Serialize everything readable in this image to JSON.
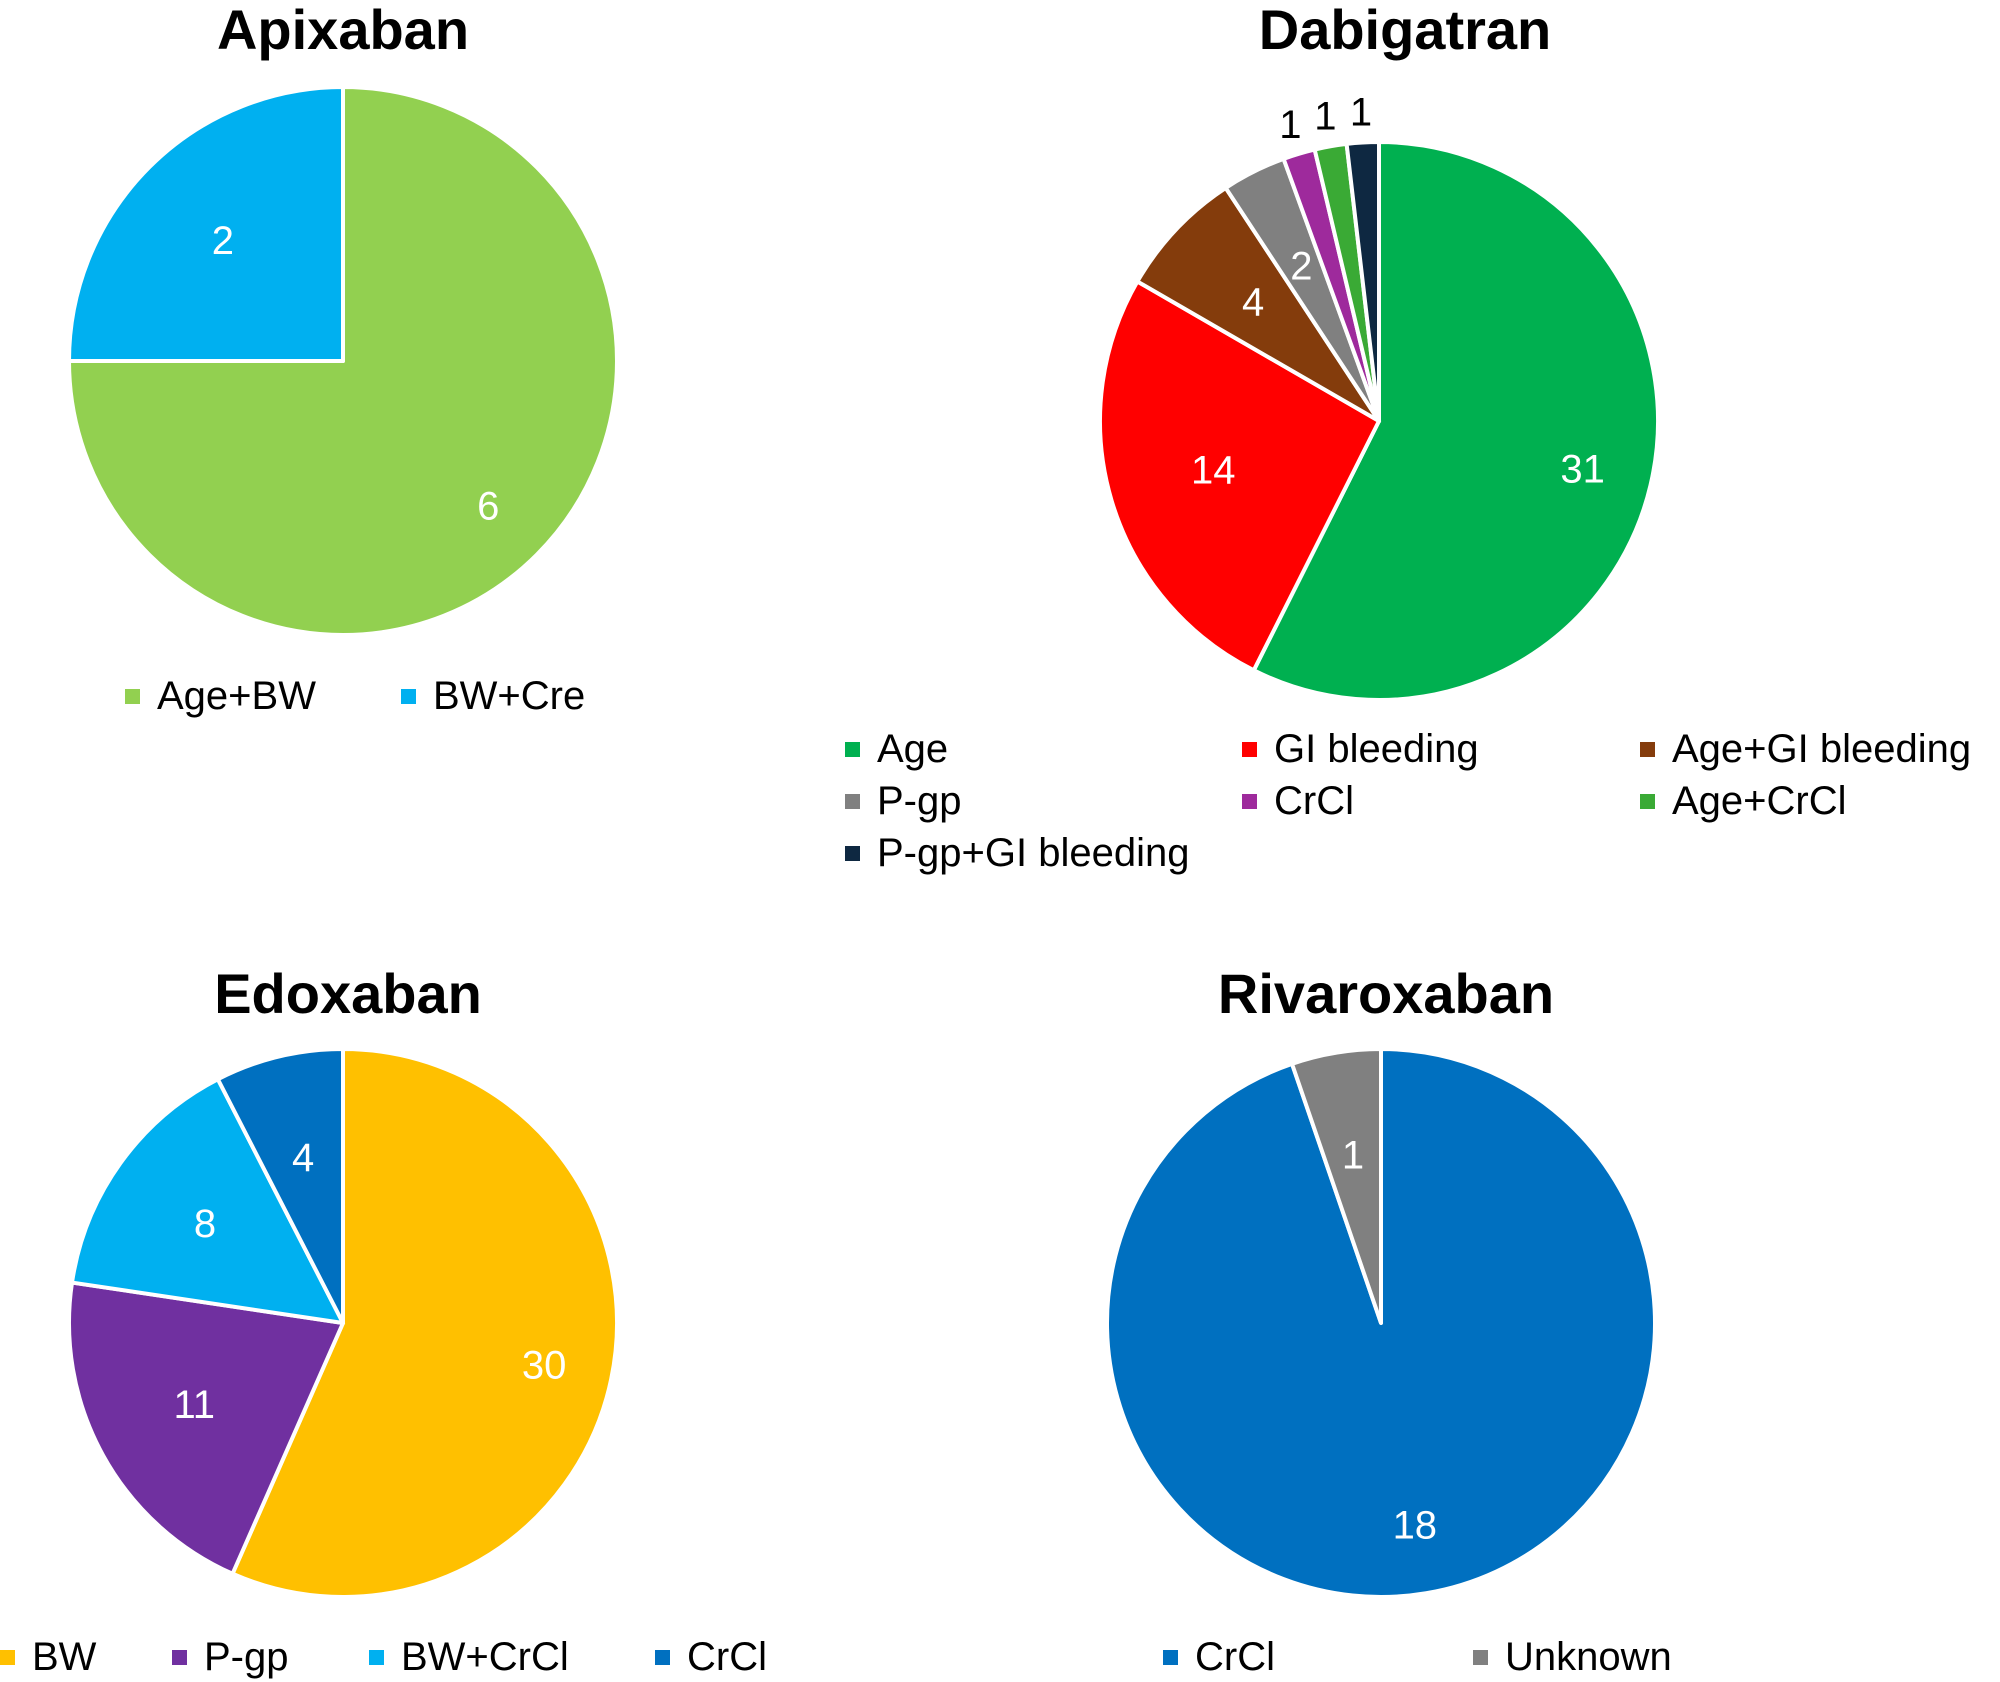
{
  "chart_data": [
    {
      "type": "pie",
      "title": "Apixaban",
      "categories": [
        "Age+BW",
        "BW+Cre"
      ],
      "values": [
        6,
        2
      ],
      "colors": [
        "#92d050",
        "#00b0f0"
      ],
      "labels": [
        "6",
        "2"
      ],
      "legend": "bottom"
    },
    {
      "type": "pie",
      "title": "Dabigatran",
      "categories": [
        "Age",
        "GI bleeding",
        "Age+GI bleeding",
        "P-gp",
        "CrCl",
        "Age+CrCl",
        "P-gp+GI bleeding"
      ],
      "values": [
        31,
        14,
        4,
        2,
        1,
        1,
        1
      ],
      "colors": [
        "#00b050",
        "#ff0000",
        "#843c0c",
        "#808080",
        "#9e2a9c",
        "#3aaa35",
        "#0e2841"
      ],
      "labels": [
        "31",
        "14",
        "4",
        "2",
        "1",
        "1",
        "1"
      ],
      "legend": "bottom"
    },
    {
      "type": "pie",
      "title": "Edoxaban",
      "categories": [
        "BW",
        "P-gp",
        "BW+CrCl",
        "CrCl"
      ],
      "values": [
        30,
        11,
        8,
        4
      ],
      "colors": [
        "#ffc000",
        "#7030a0",
        "#00b0f0",
        "#0070c0"
      ],
      "labels": [
        "30",
        "11",
        "8",
        "4"
      ],
      "legend": "bottom"
    },
    {
      "type": "pie",
      "title": "Rivaroxaban",
      "categories": [
        "CrCl",
        "Unknown"
      ],
      "values": [
        18,
        1
      ],
      "colors": [
        "#0070c0",
        "#808080"
      ],
      "labels": [
        "18",
        "1"
      ],
      "legend": "bottom"
    }
  ]
}
